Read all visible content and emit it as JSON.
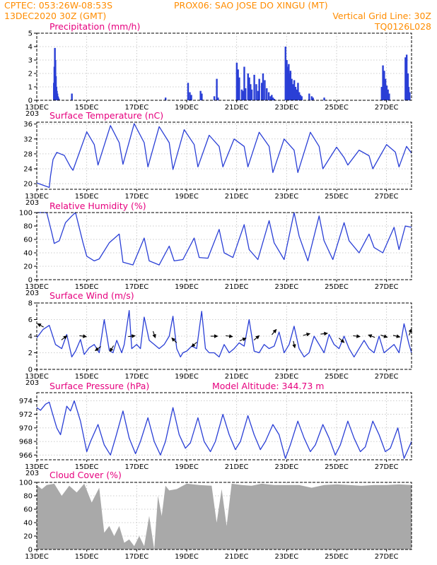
{
  "header": {
    "left1": "CPTEC:   053:26W-08:53S",
    "center1": "PROX06: SAO JOSE DO XINGU (MT)",
    "left2": "13DEC2020 30Z (GMT)",
    "right2": "Vertical Grid Line: 30Z",
    "right3": "TQ0126L028"
  },
  "colors": {
    "header": "#ff8c00",
    "title": "#e6007e",
    "series": "#2a3fd6",
    "bars": "#2a3fd6",
    "cloud": "#a9a9a9",
    "arrow": "#000000"
  },
  "x_axis": {
    "labels": [
      "13DEC",
      "15DEC",
      "17DEC",
      "19DEC",
      "21DEC",
      "23DEC",
      "25DEC",
      "27DEC"
    ],
    "label_days": [
      0,
      2,
      4,
      6,
      8,
      10,
      12,
      14
    ],
    "grid_days": [
      2,
      4,
      6,
      8,
      10,
      12,
      14
    ],
    "range_days": [
      0,
      15
    ],
    "pre_label": "203"
  },
  "chart_data": [
    {
      "type": "bar",
      "title": "Precipitation (mm/h)",
      "ylim": [
        0,
        5
      ],
      "yticks": [
        "0",
        "1",
        "2",
        "3",
        "4",
        "5"
      ],
      "ytick_values": [
        0,
        1,
        2,
        3,
        4,
        5
      ],
      "x_days": [
        0.68,
        0.7,
        0.72,
        0.74,
        0.76,
        0.78,
        0.8,
        0.82,
        0.84,
        0.86,
        0.88,
        1.4,
        5.15,
        6.05,
        6.12,
        6.18,
        6.55,
        6.6,
        7.1,
        7.2,
        7.25,
        8.0,
        8.05,
        8.1,
        8.2,
        8.25,
        8.3,
        8.35,
        8.45,
        8.5,
        8.55,
        8.6,
        8.7,
        8.78,
        8.85,
        8.9,
        9.0,
        9.05,
        9.12,
        9.2,
        9.28,
        9.35,
        9.4,
        9.45,
        9.5,
        9.95,
        10.0,
        10.05,
        10.08,
        10.1,
        10.12,
        10.15,
        10.2,
        10.25,
        10.3,
        10.35,
        10.4,
        10.45,
        10.5,
        10.55,
        10.6,
        10.9,
        11.0,
        11.05,
        11.5,
        13.8,
        13.85,
        13.9,
        13.95,
        14.0,
        14.05,
        14.1,
        14.75,
        14.8,
        14.85,
        14.88,
        14.92
      ],
      "values": [
        1.3,
        2.5,
        3.9,
        3.0,
        1.8,
        1.0,
        0.7,
        0.5,
        0.3,
        0.2,
        0.1,
        0.5,
        0.2,
        1.3,
        0.6,
        0.4,
        0.7,
        0.5,
        0.3,
        1.6,
        0.2,
        2.8,
        2.3,
        1.7,
        0.8,
        0.7,
        2.5,
        0.9,
        2.0,
        1.7,
        1.2,
        0.8,
        1.9,
        1.2,
        0.7,
        1.6,
        1.3,
        2.0,
        1.5,
        0.9,
        0.6,
        0.3,
        0.4,
        0.2,
        0.1,
        4.0,
        3.0,
        2.5,
        2.7,
        2.0,
        1.8,
        2.2,
        1.6,
        1.2,
        1.5,
        1.0,
        0.8,
        1.3,
        0.6,
        0.4,
        0.3,
        0.5,
        0.3,
        0.2,
        0.2,
        1.0,
        2.6,
        2.2,
        1.6,
        1.1,
        0.8,
        0.5,
        3.2,
        3.4,
        2.0,
        1.0,
        0.6
      ]
    },
    {
      "type": "line",
      "title": "Surface Temperature (nC)",
      "ylim": [
        18.5,
        36.5
      ],
      "yticks": [
        "20",
        "24",
        "28",
        "32",
        "36"
      ],
      "ytick_values": [
        20,
        24,
        28,
        32,
        36
      ],
      "x_days": [
        0,
        0.5,
        0.55,
        0.65,
        0.8,
        1.1,
        1.35,
        1.45,
        2.0,
        2.3,
        2.45,
        2.95,
        3.3,
        3.45,
        3.9,
        4.3,
        4.45,
        4.9,
        5.3,
        5.45,
        5.9,
        6.3,
        6.45,
        6.9,
        7.3,
        7.45,
        7.9,
        8.3,
        8.45,
        8.9,
        9.3,
        9.45,
        9.9,
        10.3,
        10.45,
        10.95,
        11.3,
        11.45,
        12.0,
        12.3,
        12.45,
        12.9,
        13.3,
        13.45,
        14.0,
        14.35,
        14.5,
        14.8,
        15.0
      ],
      "values": [
        20.2,
        19.0,
        22.0,
        26.5,
        28.4,
        27.6,
        24.5,
        23.6,
        33.9,
        30.5,
        25.0,
        35.6,
        31.0,
        25.2,
        36.1,
        31.0,
        24.5,
        35.3,
        31.0,
        23.8,
        34.5,
        30.5,
        24.5,
        33.0,
        30.0,
        24.5,
        32.0,
        30.0,
        24.5,
        33.8,
        30.0,
        23.0,
        32.0,
        29.0,
        23.0,
        33.8,
        30.0,
        24.0,
        29.8,
        27.0,
        25.0,
        29.0,
        27.5,
        24.0,
        30.5,
        28.5,
        24.5,
        30.0,
        28.2
      ]
    },
    {
      "type": "line",
      "title": "Relative Humidity (%)",
      "ylim": [
        0,
        100
      ],
      "yticks": [
        "0",
        "20",
        "40",
        "60",
        "80",
        "100"
      ],
      "ytick_values": [
        0,
        20,
        40,
        60,
        80,
        100
      ],
      "x_days": [
        0,
        0.4,
        0.6,
        0.7,
        0.9,
        1.15,
        1.4,
        1.55,
        1.85,
        2.0,
        2.3,
        2.5,
        2.9,
        3.3,
        3.45,
        3.85,
        4.3,
        4.5,
        4.9,
        5.3,
        5.5,
        5.85,
        6.3,
        6.5,
        6.85,
        7.3,
        7.5,
        7.85,
        8.3,
        8.5,
        8.85,
        9.3,
        9.5,
        9.9,
        10.3,
        10.5,
        10.85,
        11.3,
        11.5,
        11.85,
        12.3,
        12.5,
        12.9,
        13.3,
        13.5,
        13.85,
        14.3,
        14.5,
        14.75,
        15.0
      ],
      "values": [
        100,
        100,
        70,
        54,
        58,
        85,
        95,
        100,
        55,
        35,
        28,
        31,
        55,
        68,
        26,
        22,
        62,
        28,
        22,
        50,
        28,
        30,
        62,
        33,
        32,
        75,
        40,
        33,
        82,
        45,
        30,
        88,
        55,
        30,
        100,
        65,
        28,
        95,
        58,
        30,
        85,
        58,
        40,
        68,
        48,
        40,
        78,
        45,
        80,
        78
      ]
    },
    {
      "type": "line",
      "title": "Surface Wind (m/s)",
      "ylim": [
        0,
        8
      ],
      "yticks": [
        "0",
        "2",
        "4",
        "6",
        "8"
      ],
      "ytick_values": [
        0,
        2,
        4,
        6,
        8
      ],
      "x_days": [
        0,
        0.25,
        0.5,
        0.75,
        1.0,
        1.2,
        1.4,
        1.55,
        1.75,
        1.9,
        2.1,
        2.3,
        2.5,
        2.7,
        2.9,
        3.05,
        3.2,
        3.4,
        3.5,
        3.7,
        3.8,
        4.0,
        4.15,
        4.3,
        4.5,
        4.7,
        4.9,
        5.1,
        5.3,
        5.45,
        5.6,
        5.75,
        5.85,
        6.0,
        6.2,
        6.4,
        6.6,
        6.75,
        6.9,
        7.1,
        7.3,
        7.5,
        7.7,
        7.9,
        8.1,
        8.3,
        8.5,
        8.7,
        8.9,
        9.1,
        9.3,
        9.5,
        9.7,
        9.9,
        10.1,
        10.3,
        10.5,
        10.7,
        10.9,
        11.1,
        11.3,
        11.5,
        11.7,
        11.9,
        12.1,
        12.3,
        12.5,
        12.7,
        12.9,
        13.1,
        13.3,
        13.5,
        13.7,
        13.9,
        14.1,
        14.3,
        14.5,
        14.7,
        14.9,
        15.0
      ],
      "values": [
        3.8,
        4.8,
        5.3,
        3.0,
        2.5,
        4.2,
        1.5,
        2.2,
        3.6,
        1.8,
        2.6,
        3.0,
        2.0,
        6.0,
        2.3,
        2.0,
        3.5,
        2.0,
        3.0,
        7.1,
        2.5,
        3.0,
        2.5,
        6.3,
        3.5,
        3.0,
        2.5,
        3.0,
        4.0,
        6.4,
        2.5,
        1.5,
        2.0,
        2.2,
        2.8,
        2.5,
        7.0,
        2.5,
        2.0,
        2.0,
        1.5,
        3.0,
        2.0,
        2.5,
        3.2,
        2.8,
        6.0,
        2.2,
        2.0,
        3.0,
        2.5,
        2.8,
        4.5,
        2.0,
        3.0,
        5.2,
        2.5,
        1.5,
        2.0,
        4.0,
        3.0,
        2.0,
        4.2,
        3.0,
        2.5,
        4.0,
        2.5,
        1.5,
        2.5,
        3.5,
        2.5,
        2.0,
        4.0,
        2.0,
        2.5,
        3.0,
        2.0,
        5.5,
        3.0,
        2.0
      ]
    },
    {
      "type": "line",
      "title": "Surface Pressure (hPa)",
      "annotation": "Model Altitude: 344.73 m",
      "ylim": [
        965.3,
        975.2
      ],
      "yticks": [
        "966",
        "968",
        "970",
        "972",
        "974"
      ],
      "ytick_values": [
        966,
        968,
        970,
        972,
        974
      ],
      "x_days": [
        0,
        0.15,
        0.35,
        0.5,
        0.6,
        0.8,
        0.95,
        1.2,
        1.35,
        1.5,
        1.75,
        2.0,
        2.15,
        2.45,
        2.7,
        2.95,
        3.15,
        3.45,
        3.7,
        3.95,
        4.15,
        4.45,
        4.7,
        4.95,
        5.15,
        5.45,
        5.7,
        5.95,
        6.15,
        6.45,
        6.7,
        6.95,
        7.15,
        7.45,
        7.7,
        7.95,
        8.15,
        8.45,
        8.7,
        8.95,
        9.15,
        9.45,
        9.7,
        9.95,
        10.15,
        10.45,
        10.7,
        10.95,
        11.15,
        11.45,
        11.7,
        11.95,
        12.15,
        12.45,
        12.7,
        12.95,
        13.15,
        13.45,
        13.7,
        13.95,
        14.15,
        14.45,
        14.7,
        15.0
      ],
      "values": [
        973.0,
        972.6,
        973.5,
        973.8,
        972.5,
        970.0,
        969.0,
        973.2,
        972.5,
        974.0,
        971.0,
        966.5,
        968.0,
        970.5,
        967.5,
        966.0,
        968.5,
        972.5,
        968.5,
        966.2,
        968.0,
        971.5,
        968.0,
        966.0,
        968.0,
        973.0,
        969.0,
        967.0,
        967.8,
        971.5,
        968.0,
        966.5,
        968.0,
        972.0,
        969.0,
        966.8,
        968.0,
        971.8,
        969.0,
        966.8,
        968.0,
        970.5,
        969.0,
        965.5,
        967.5,
        971.0,
        968.5,
        966.5,
        967.5,
        970.5,
        968.5,
        966.0,
        967.5,
        971.0,
        968.5,
        966.5,
        967.2,
        971.0,
        969.0,
        966.5,
        967.0,
        970.0,
        965.5,
        968.0
      ]
    },
    {
      "type": "area",
      "title": "Cloud Cover (%)",
      "ylim": [
        0,
        100
      ],
      "yticks": [
        "0",
        "20",
        "40",
        "60",
        "80",
        "100"
      ],
      "ytick_values": [
        0,
        20,
        40,
        60,
        80,
        100
      ],
      "x_days": [
        0,
        0.2,
        0.4,
        0.7,
        1.0,
        1.3,
        1.6,
        1.9,
        2.2,
        2.5,
        2.7,
        2.9,
        3.1,
        3.3,
        3.5,
        3.7,
        3.9,
        4.1,
        4.3,
        4.5,
        4.7,
        4.85,
        5.0,
        5.15,
        5.3,
        5.6,
        6.0,
        6.5,
        7.0,
        7.2,
        7.4,
        7.6,
        7.8,
        8.2,
        8.6,
        9.0,
        9.5,
        10.0,
        10.5,
        11.0,
        11.5,
        12.0,
        12.5,
        13.0,
        13.5,
        14.0,
        14.5,
        15.0
      ],
      "values": [
        96,
        90,
        96,
        98,
        80,
        95,
        85,
        98,
        70,
        92,
        25,
        35,
        20,
        35,
        10,
        15,
        5,
        20,
        5,
        50,
        0,
        80,
        50,
        95,
        88,
        90,
        98,
        96,
        95,
        40,
        90,
        35,
        98,
        96,
        95,
        98,
        96,
        96,
        96,
        92,
        96,
        97,
        96,
        95,
        96,
        96,
        97,
        96
      ]
    }
  ],
  "wind_vectors": {
    "x_days": [
      0.15,
      1.1,
      1.85,
      2.45,
      3.0,
      3.8,
      4.7,
      5.5,
      6.3,
      7.1,
      7.7,
      8.25,
      8.8,
      9.5,
      10.3,
      10.8,
      11.5,
      12.2,
      12.8,
      13.4,
      13.9,
      14.4,
      14.95
    ],
    "u": [
      -0.9,
      0.8,
      0.7,
      -0.8,
      -0.5,
      0.9,
      0.3,
      -0.5,
      -0.7,
      0.9,
      0.8,
      0.7,
      0.6,
      0.5,
      0.2,
      0.8,
      0.9,
      0.7,
      0.8,
      -0.8,
      0.6,
      0.8,
      0.3
    ],
    "v": [
      0.5,
      0.6,
      -0.1,
      -0.6,
      -0.8,
      0.1,
      -0.9,
      0.5,
      -0.6,
      0.0,
      -0.1,
      0.3,
      0.5,
      0.6,
      -0.9,
      0.2,
      0.1,
      -0.6,
      -0.1,
      0.3,
      -0.2,
      -0.2,
      0.8
    ],
    "speed": [
      5.3,
      3.8,
      4.0,
      2.5,
      2.5,
      4.0,
      4.2,
      3.5,
      3.0,
      4.0,
      4.0,
      3.6,
      3.8,
      4.5,
      3.0,
      4.2,
      4.3,
      3.5,
      4.0,
      4.0,
      4.0,
      4.0,
      4.5
    ]
  }
}
